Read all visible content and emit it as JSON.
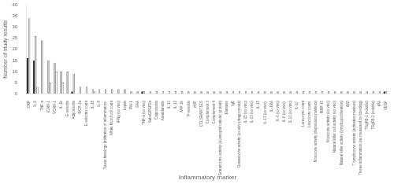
{
  "chart_data": {
    "type": "bar",
    "categories": [
      "CRP",
      "IL-6",
      "TNF-a",
      "ICAM-1",
      "VCAM-1",
      "IL-1b",
      "E-selectin",
      "Adiponectin",
      "MCP-1a",
      "E-selectin count",
      "IL-18",
      "IL-8",
      "Tissue histology (infiltration of inflammatory-",
      "White blood cell count",
      "IFNg (ex vivo)",
      "Leptin",
      "PAI-1",
      "SAA",
      "TNF-a (ex vivo)",
      "SubsGPGP2a",
      "Calprotectin",
      "Anandamide",
      "IL-10",
      "IL-12",
      "MIP-1b",
      "P-selectin",
      "vWF",
      "CCLSRAMT1ES",
      "Complement 3",
      "Complement 4",
      "Granulocyte activity (eosinophil cationic protein)",
      "Elastase",
      "IgE",
      "Granulocyte activity (ex vivo phagocytosis)",
      "IL-15 (ex vivo)",
      "IL-13 (ex vivo)",
      "IL-15",
      "IL-13 (ex vivo) ",
      "IL-1RA",
      "IL-6 (ex vivo)",
      "IL-6 (ex vivo) ",
      "IL-10 (ex vivo)",
      "IL-10 ",
      "Leucocyte count",
      "Leucocyte count ",
      "Monocyte activity (depression markers)",
      "MBP-15",
      "Monocyte activity (ex vivo)",
      "Natural killer cell activity (ex vivo)",
      "Natural killer activity (lymphoproliferation)",
      "iNO",
      "T lymphocyte activity (activation markers)",
      "Tissue inflammation (as measured by bleeding)",
      "TGgFB-1 (soluble)",
      "TGgFB-2 (soluble)",
      "tPA",
      "VEGF"
    ],
    "series": [
      {
        "color": "black",
        "values": [
          16,
          15,
          0,
          0,
          0,
          0,
          0,
          1,
          0,
          0,
          0,
          0,
          0,
          0,
          0,
          0,
          0,
          0,
          1,
          0,
          0,
          0,
          0,
          0,
          0,
          0,
          0,
          0,
          0,
          0,
          0,
          0,
          0,
          0,
          0,
          0,
          0,
          0,
          0,
          0,
          0,
          0,
          0,
          0,
          0,
          0,
          0,
          0,
          0,
          0,
          0,
          0,
          0,
          0,
          0,
          0,
          1
        ]
      },
      {
        "color": "#c8c8c8",
        "values": [
          34,
          26,
          24,
          15,
          14,
          10,
          10,
          9,
          3,
          3,
          2,
          2,
          2,
          2,
          2,
          2,
          1,
          1,
          1,
          1,
          1,
          1,
          1,
          1,
          1,
          1,
          1,
          1,
          1,
          1,
          1,
          1,
          1,
          1,
          1,
          1,
          1,
          1,
          1,
          1,
          1,
          1,
          1,
          1,
          1,
          1,
          1,
          1,
          1,
          1,
          1,
          1,
          1,
          1,
          1,
          1,
          1
        ]
      },
      {
        "color": "white",
        "values": [
          0,
          3,
          0,
          5,
          10,
          5,
          0,
          0,
          0,
          0,
          1,
          0,
          0,
          0,
          0,
          0,
          0,
          0,
          0,
          0,
          0,
          0,
          0,
          0,
          0,
          0,
          0,
          0,
          0,
          0,
          0,
          0,
          0,
          0,
          0,
          0,
          0,
          0,
          0,
          0,
          0,
          0,
          0,
          0,
          0,
          0,
          0,
          0,
          0,
          0,
          0,
          0,
          0,
          0,
          0,
          0,
          0
        ]
      }
    ],
    "xlabel": "Inflammatory marker",
    "ylabel": "Number of study results",
    "ylim": [
      0,
      40
    ],
    "yticks": [
      0,
      5,
      10,
      15,
      20,
      25,
      30,
      35,
      40
    ],
    "grid": false
  }
}
